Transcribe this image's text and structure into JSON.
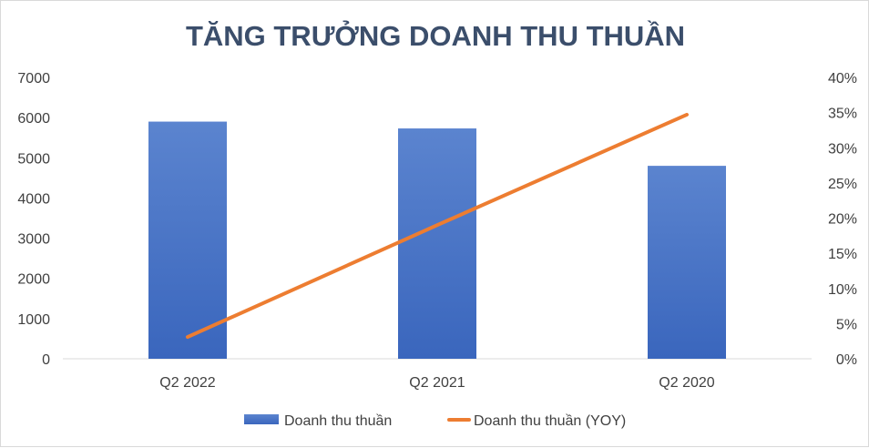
{
  "chart_data": {
    "type": "bar",
    "title": "TĂNG TRƯỞNG DOANH THU THUẦN",
    "categories": [
      "Q2 2022",
      "Q2 2021",
      "Q2 2020"
    ],
    "y_left": {
      "ylim": [
        0,
        7000
      ],
      "ticks": [
        "0",
        "1000",
        "2000",
        "3000",
        "4000",
        "5000",
        "6000",
        "7000"
      ]
    },
    "y_right": {
      "ylim": [
        0,
        0.4
      ],
      "ticks": [
        "0%",
        "5%",
        "10%",
        "15%",
        "20%",
        "25%",
        "30%",
        "35%",
        "40%"
      ]
    },
    "series": [
      {
        "name": "Doanh thu thuần",
        "type": "bar",
        "axis": "left",
        "values": [
          5900,
          5730,
          4800
        ],
        "color": "#4472c4"
      },
      {
        "name": "Doanh thu thuần (YOY)",
        "type": "line",
        "axis": "right",
        "values": [
          0.031,
          0.19,
          0.347
        ],
        "color": "#ed7d31"
      }
    ],
    "legend_position": "bottom",
    "grid": false
  }
}
